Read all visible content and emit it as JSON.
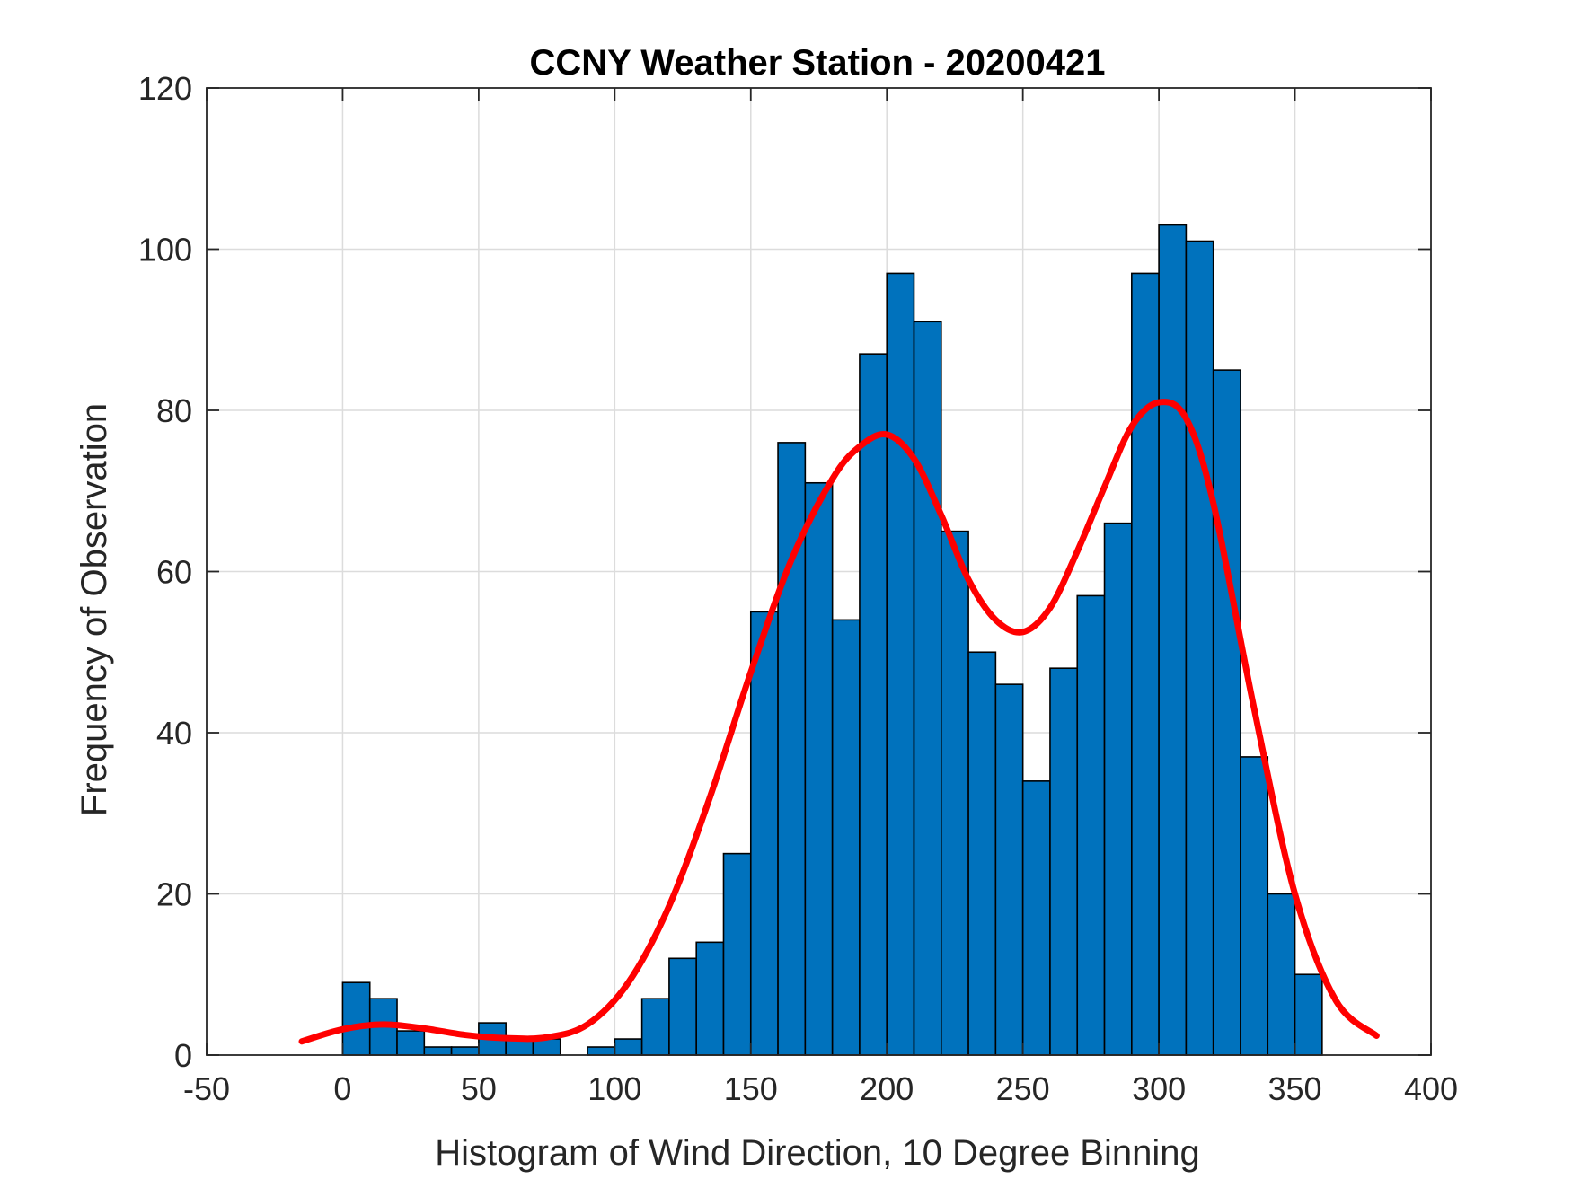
{
  "chart_data": {
    "type": "bar",
    "title": "CCNY Weather Station - 20200421",
    "xlabel": "Histogram of Wind Direction, 10 Degree Binning",
    "ylabel": "Frequency of Observation",
    "xlim": [
      -50,
      400
    ],
    "ylim": [
      0,
      120
    ],
    "xticks": [
      -50,
      0,
      50,
      100,
      150,
      200,
      250,
      300,
      350,
      400
    ],
    "yticks": [
      0,
      20,
      40,
      60,
      80,
      100,
      120
    ],
    "grid": true,
    "bin_width": 10,
    "bin_edges": [
      0,
      10,
      20,
      30,
      40,
      50,
      60,
      70,
      80,
      90,
      100,
      110,
      120,
      130,
      140,
      150,
      160,
      170,
      180,
      190,
      200,
      210,
      220,
      230,
      240,
      250,
      260,
      270,
      280,
      290,
      300,
      310,
      320,
      330,
      340,
      350,
      360
    ],
    "values": [
      9,
      7,
      3,
      1,
      1,
      4,
      2,
      2,
      0,
      1,
      2,
      7,
      12,
      14,
      25,
      55,
      76,
      71,
      54,
      87,
      97,
      91,
      65,
      50,
      46,
      34,
      48,
      57,
      66,
      97,
      103,
      101,
      85,
      37,
      20,
      10
    ],
    "fit_curve": {
      "name": "fit",
      "x": [
        -15,
        0,
        15,
        30,
        45,
        60,
        75,
        90,
        105,
        120,
        135,
        150,
        165,
        180,
        190,
        200,
        210,
        220,
        230,
        240,
        250,
        260,
        270,
        280,
        290,
        300,
        310,
        320,
        335,
        350,
        365,
        380
      ],
      "y": [
        1.7,
        3.2,
        3.8,
        3.3,
        2.5,
        2.1,
        2.2,
        3.8,
        9.0,
        18.5,
        32.0,
        47.5,
        61.5,
        71.5,
        75.5,
        77.0,
        74.0,
        67.0,
        59.0,
        54.0,
        52.5,
        55.5,
        62.5,
        70.5,
        78.0,
        81.0,
        79.0,
        68.5,
        43.0,
        20.0,
        6.8,
        2.4
      ]
    },
    "colors": {
      "bar_fill": "#0072BD",
      "bar_edge": "#000000",
      "curve": "#FF0000",
      "grid": "#DCDCDC",
      "axis": "#262626"
    }
  }
}
